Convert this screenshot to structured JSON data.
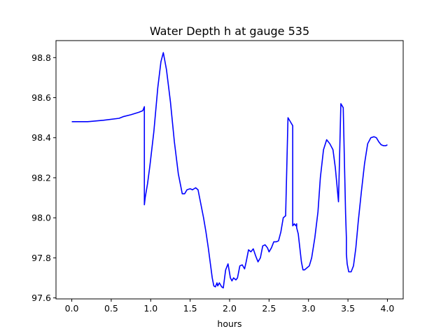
{
  "chart_data": {
    "type": "line",
    "title": "Water Depth h at gauge 535",
    "xlabel": "hours",
    "ylabel": "",
    "xlim": [
      -0.2,
      4.2
    ],
    "ylim": [
      97.595,
      98.885
    ],
    "xticks": [
      0.0,
      0.5,
      1.0,
      1.5,
      2.0,
      2.5,
      3.0,
      3.5,
      4.0
    ],
    "xtick_labels": [
      "0.0",
      "0.5",
      "1.0",
      "1.5",
      "2.0",
      "2.5",
      "3.0",
      "3.5",
      "4.0"
    ],
    "yticks": [
      97.6,
      97.8,
      98.0,
      98.2,
      98.4,
      98.6,
      98.8
    ],
    "ytick_labels": [
      "97.6",
      "97.8",
      "98.0",
      "98.2",
      "98.4",
      "98.6",
      "98.8"
    ],
    "grid": false,
    "series": [
      {
        "color": "#0000ff",
        "x": [
          0.0,
          0.2,
          0.4,
          0.6,
          0.65,
          0.75,
          0.85,
          0.9,
          0.92,
          0.92,
          0.93,
          0.96,
          0.99,
          1.04,
          1.09,
          1.13,
          1.16,
          1.2,
          1.25,
          1.3,
          1.35,
          1.4,
          1.43,
          1.46,
          1.5,
          1.53,
          1.57,
          1.6,
          1.63,
          1.67,
          1.7,
          1.73,
          1.76,
          1.78,
          1.8,
          1.82,
          1.84,
          1.85,
          1.87,
          1.9,
          1.92,
          1.95,
          1.98,
          2.01,
          2.03,
          2.05,
          2.08,
          2.1,
          2.13,
          2.16,
          2.19,
          2.21,
          2.24,
          2.27,
          2.3,
          2.33,
          2.36,
          2.39,
          2.42,
          2.45,
          2.48,
          2.5,
          2.53,
          2.56,
          2.59,
          2.62,
          2.65,
          2.68,
          2.71,
          2.74,
          2.77,
          2.8,
          2.8,
          2.82,
          2.84,
          2.85,
          2.85,
          2.87,
          2.89,
          2.91,
          2.93,
          2.95,
          2.98,
          3.01,
          3.04,
          3.08,
          3.12,
          3.15,
          3.19,
          3.23,
          3.27,
          3.31,
          3.34,
          3.38,
          3.41,
          3.44,
          3.47,
          3.48,
          3.48,
          3.49,
          3.51,
          3.54,
          3.57,
          3.6,
          3.63,
          3.67,
          3.71,
          3.75,
          3.79,
          3.83,
          3.86,
          3.89,
          3.92,
          3.95,
          3.98,
          4.0
        ],
        "y": [
          98.48,
          98.48,
          98.487,
          98.497,
          98.505,
          98.515,
          98.527,
          98.535,
          98.555,
          98.065,
          98.1,
          98.17,
          98.26,
          98.43,
          98.65,
          98.78,
          98.825,
          98.74,
          98.58,
          98.38,
          98.22,
          98.12,
          98.12,
          98.14,
          98.145,
          98.14,
          98.15,
          98.14,
          98.08,
          98.0,
          97.93,
          97.85,
          97.76,
          97.7,
          97.66,
          97.655,
          97.675,
          97.66,
          97.675,
          97.655,
          97.65,
          97.74,
          97.77,
          97.7,
          97.685,
          97.7,
          97.69,
          97.7,
          97.76,
          97.765,
          97.745,
          97.78,
          97.84,
          97.83,
          97.845,
          97.81,
          97.78,
          97.8,
          97.86,
          97.865,
          97.85,
          97.83,
          97.85,
          97.88,
          97.88,
          97.885,
          97.93,
          98.0,
          98.01,
          98.5,
          98.48,
          98.46,
          97.96,
          97.97,
          97.96,
          97.97,
          97.95,
          97.92,
          97.85,
          97.78,
          97.74,
          97.74,
          97.75,
          97.76,
          97.8,
          97.9,
          98.03,
          98.2,
          98.34,
          98.39,
          98.37,
          98.34,
          98.25,
          98.08,
          98.57,
          98.55,
          98.02,
          97.9,
          97.82,
          97.77,
          97.73,
          97.73,
          97.76,
          97.85,
          97.98,
          98.13,
          98.27,
          98.37,
          98.4,
          98.405,
          98.4,
          98.38,
          98.365,
          98.36,
          98.36,
          98.365
        ]
      }
    ]
  }
}
